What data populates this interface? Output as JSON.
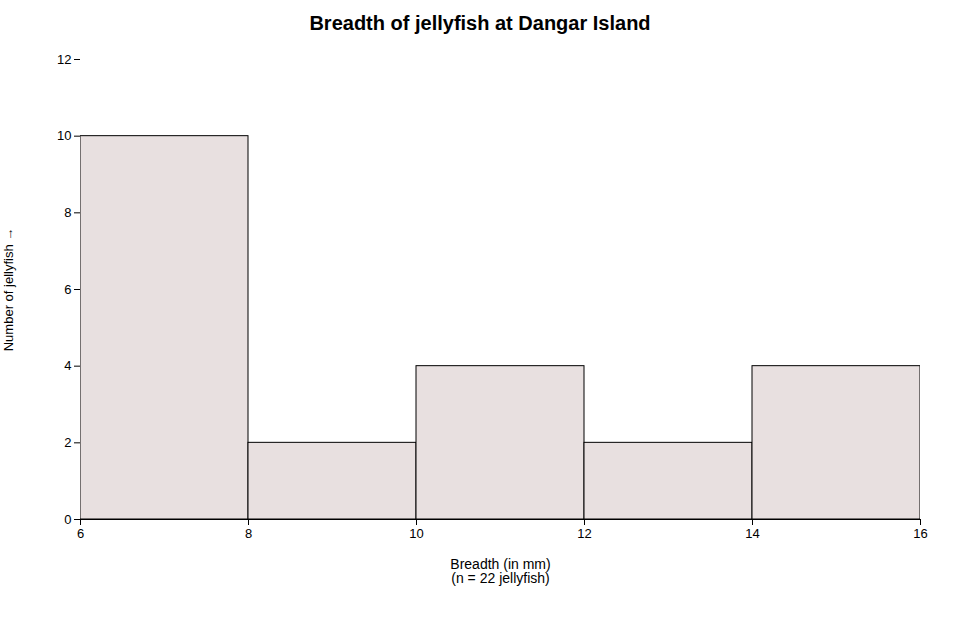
{
  "chart_data": {
    "type": "histogram",
    "title": "Breadth of jellyfish at Dangar Island",
    "xlabel": "Breadth (in mm)\n(n = 22 jellyfish)",
    "ylabel": "Number of jellyfish",
    "bins": [
      6,
      8,
      10,
      12,
      14,
      16
    ],
    "counts": [
      10,
      2,
      4,
      2,
      4
    ],
    "color": "#e8e0e0",
    "xlim": [
      6,
      16
    ],
    "ylim": [
      0,
      12
    ],
    "xticks": [
      6,
      8,
      10,
      12,
      14,
      16
    ],
    "yticks": [
      0,
      2,
      4,
      6,
      8,
      10,
      12
    ],
    "grid": false
  }
}
